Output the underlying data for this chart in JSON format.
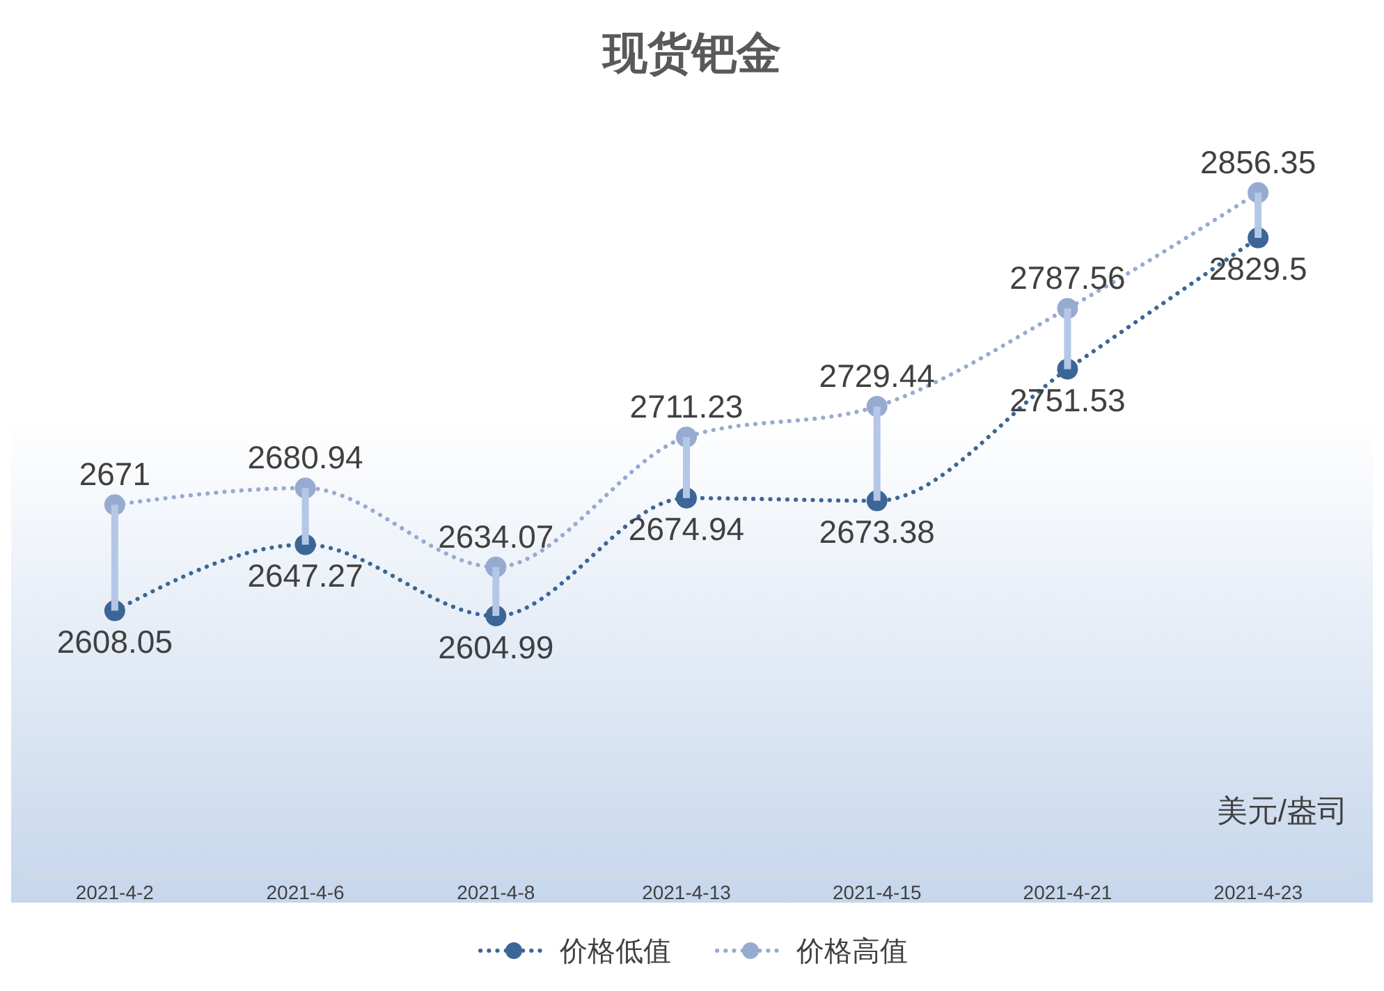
{
  "chart_data": {
    "type": "line",
    "title": "现货钯金",
    "categories": [
      "2021-4-2",
      "2021-4-6",
      "2021-4-8",
      "2021-4-13",
      "2021-4-15",
      "2021-4-21",
      "2021-4-23"
    ],
    "series": [
      {
        "name": "价格低值",
        "color": "#3b6696",
        "values": [
          2608.05,
          2647.27,
          2604.99,
          2674.94,
          2673.38,
          2751.53,
          2829.5
        ]
      },
      {
        "name": "价格高值",
        "color": "#97abd0",
        "values": [
          2671,
          2680.94,
          2634.07,
          2711.23,
          2729.44,
          2787.56,
          2856.35
        ]
      }
    ],
    "data_labels": true,
    "marker": "circle",
    "line_style": "dotted",
    "legend": "bottom",
    "grid": false,
    "annotations": [
      "美元/盎司"
    ]
  }
}
